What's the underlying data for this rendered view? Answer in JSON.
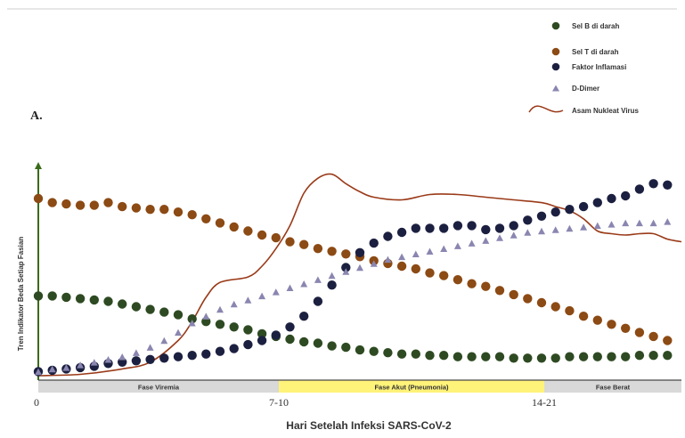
{
  "chart_data": {
    "type": "line",
    "panel_label": "A.",
    "xlabel": "Hari Setelah Infeksi SARS-CoV-2",
    "ylabel": "Tren Indikator Beda Setiap Fasian",
    "x_ticks": [
      "0",
      "7-10",
      "14-21"
    ],
    "phases": [
      {
        "label": "Fase Viremia",
        "color": "#d9d9d9"
      },
      {
        "label": "Fase Akut (Pneumonia)",
        "color": "#fff37a"
      },
      {
        "label": "Fase Berat",
        "color": "#d9d9d9"
      }
    ],
    "legend": [
      {
        "label": "Sel B di darah",
        "marker": "circle",
        "color": "#2e4a22"
      },
      {
        "label": "Sel T di darah",
        "marker": "circle",
        "color": "#8c4a14"
      },
      {
        "label": "Faktor Inflamasi",
        "marker": "circle",
        "color": "#1c2040"
      },
      {
        "label": "D-Dimer",
        "marker": "triangle",
        "color": "#8a86b0"
      },
      {
        "label": "Asam Nukleat Virus",
        "marker": "line",
        "color": "#9a3a18"
      }
    ],
    "series": [
      {
        "name": "Sel B di darah",
        "marker": "circle",
        "color": "#2e4a22",
        "points": [
          [
            0,
            81
          ],
          [
            1,
            81
          ],
          [
            2,
            80
          ],
          [
            3,
            79
          ],
          [
            4,
            78
          ],
          [
            5,
            77
          ],
          [
            6,
            75
          ],
          [
            7,
            73
          ],
          [
            8,
            71
          ],
          [
            9,
            69
          ],
          [
            10,
            67
          ],
          [
            11,
            64
          ],
          [
            12,
            62
          ],
          [
            13,
            60
          ],
          [
            14,
            58
          ],
          [
            15,
            56
          ],
          [
            16,
            53
          ],
          [
            17,
            51
          ],
          [
            18,
            49
          ],
          [
            19,
            47
          ],
          [
            20,
            46
          ],
          [
            21,
            44
          ],
          [
            22,
            43
          ],
          [
            23,
            41
          ],
          [
            24,
            40
          ],
          [
            25,
            39
          ],
          [
            26,
            38
          ],
          [
            27,
            38
          ],
          [
            28,
            37
          ],
          [
            29,
            37
          ],
          [
            30,
            36
          ],
          [
            31,
            36
          ],
          [
            32,
            36
          ],
          [
            33,
            36
          ],
          [
            34,
            35
          ],
          [
            35,
            35
          ],
          [
            36,
            35
          ],
          [
            37,
            35
          ],
          [
            38,
            36
          ],
          [
            39,
            36
          ],
          [
            40,
            36
          ],
          [
            41,
            36
          ],
          [
            42,
            36
          ],
          [
            43,
            37
          ],
          [
            44,
            37
          ],
          [
            45,
            37
          ]
        ]
      },
      {
        "name": "Sel T di darah",
        "marker": "circle",
        "color": "#8c4a14",
        "points": [
          [
            0,
            153
          ],
          [
            1,
            150
          ],
          [
            2,
            149
          ],
          [
            3,
            148
          ],
          [
            4,
            148
          ],
          [
            5,
            150
          ],
          [
            6,
            147
          ],
          [
            7,
            146
          ],
          [
            8,
            145
          ],
          [
            9,
            145
          ],
          [
            10,
            143
          ],
          [
            11,
            141
          ],
          [
            12,
            138
          ],
          [
            13,
            135
          ],
          [
            14,
            132
          ],
          [
            15,
            129
          ],
          [
            16,
            126
          ],
          [
            17,
            124
          ],
          [
            18,
            121
          ],
          [
            19,
            119
          ],
          [
            20,
            116
          ],
          [
            21,
            114
          ],
          [
            22,
            112
          ],
          [
            23,
            110
          ],
          [
            24,
            107
          ],
          [
            25,
            105
          ],
          [
            26,
            103
          ],
          [
            27,
            101
          ],
          [
            28,
            98
          ],
          [
            29,
            96
          ],
          [
            30,
            93
          ],
          [
            31,
            90
          ],
          [
            32,
            88
          ],
          [
            33,
            85
          ],
          [
            34,
            82
          ],
          [
            35,
            79
          ],
          [
            36,
            76
          ],
          [
            37,
            73
          ],
          [
            38,
            70
          ],
          [
            39,
            66
          ],
          [
            40,
            63
          ],
          [
            41,
            60
          ],
          [
            42,
            57
          ],
          [
            43,
            54
          ],
          [
            44,
            51
          ],
          [
            45,
            48
          ]
        ]
      },
      {
        "name": "Faktor Inflamasi",
        "marker": "circle",
        "color": "#1c2040",
        "points": [
          [
            0,
            25
          ],
          [
            1,
            26
          ],
          [
            2,
            27
          ],
          [
            3,
            28
          ],
          [
            4,
            29
          ],
          [
            5,
            31
          ],
          [
            6,
            32
          ],
          [
            7,
            33
          ],
          [
            8,
            34
          ],
          [
            9,
            35
          ],
          [
            10,
            36
          ],
          [
            11,
            37
          ],
          [
            12,
            38
          ],
          [
            13,
            40
          ],
          [
            14,
            42
          ],
          [
            15,
            45
          ],
          [
            16,
            48
          ],
          [
            17,
            52
          ],
          [
            18,
            58
          ],
          [
            19,
            66
          ],
          [
            20,
            77
          ],
          [
            21,
            89
          ],
          [
            22,
            102
          ],
          [
            23,
            113
          ],
          [
            24,
            120
          ],
          [
            25,
            125
          ],
          [
            26,
            128
          ],
          [
            27,
            131
          ],
          [
            28,
            131
          ],
          [
            29,
            131
          ],
          [
            30,
            133
          ],
          [
            31,
            133
          ],
          [
            32,
            130
          ],
          [
            33,
            131
          ],
          [
            34,
            133
          ],
          [
            35,
            137
          ],
          [
            36,
            140
          ],
          [
            37,
            143
          ],
          [
            38,
            145
          ],
          [
            39,
            147
          ],
          [
            40,
            150
          ],
          [
            41,
            153
          ],
          [
            42,
            155
          ],
          [
            43,
            160
          ],
          [
            44,
            164
          ],
          [
            45,
            163
          ]
        ]
      },
      {
        "name": "D-Dimer",
        "marker": "triangle",
        "color": "#8a86b0",
        "points": [
          [
            0,
            25
          ],
          [
            1,
            27
          ],
          [
            2,
            28
          ],
          [
            3,
            30
          ],
          [
            4,
            32
          ],
          [
            5,
            34
          ],
          [
            6,
            36
          ],
          [
            7,
            39
          ],
          [
            8,
            43
          ],
          [
            9,
            48
          ],
          [
            10,
            54
          ],
          [
            11,
            61
          ],
          [
            12,
            66
          ],
          [
            13,
            71
          ],
          [
            14,
            75
          ],
          [
            15,
            78
          ],
          [
            16,
            81
          ],
          [
            17,
            84
          ],
          [
            18,
            87
          ],
          [
            19,
            90
          ],
          [
            20,
            93
          ],
          [
            21,
            96
          ],
          [
            22,
            99
          ],
          [
            23,
            102
          ],
          [
            24,
            105
          ],
          [
            25,
            108
          ],
          [
            26,
            110
          ],
          [
            27,
            112
          ],
          [
            28,
            114
          ],
          [
            29,
            116
          ],
          [
            30,
            118
          ],
          [
            31,
            120
          ],
          [
            32,
            122
          ],
          [
            33,
            124
          ],
          [
            34,
            126
          ],
          [
            35,
            128
          ],
          [
            36,
            129
          ],
          [
            37,
            130
          ],
          [
            38,
            131
          ],
          [
            39,
            132
          ],
          [
            40,
            133
          ],
          [
            41,
            134
          ],
          [
            42,
            135
          ],
          [
            43,
            135
          ],
          [
            44,
            135
          ],
          [
            45,
            136
          ]
        ]
      },
      {
        "name": "Asam Nukleat Virus",
        "marker": "line",
        "color": "#9a3a18",
        "points": [
          [
            0,
            22
          ],
          [
            3,
            23
          ],
          [
            6,
            27
          ],
          [
            8,
            32
          ],
          [
            10,
            48
          ],
          [
            11,
            62
          ],
          [
            12,
            80
          ],
          [
            13,
            91
          ],
          [
            15,
            95
          ],
          [
            16,
            103
          ],
          [
            17,
            116
          ],
          [
            18,
            133
          ],
          [
            19,
            157
          ],
          [
            20,
            168
          ],
          [
            21,
            171
          ],
          [
            22,
            164
          ],
          [
            23,
            158
          ],
          [
            24,
            154
          ],
          [
            26,
            152
          ],
          [
            28,
            156
          ],
          [
            30,
            156
          ],
          [
            32,
            154
          ],
          [
            34,
            152
          ],
          [
            36,
            150
          ],
          [
            37,
            147
          ],
          [
            38,
            144
          ],
          [
            39,
            138
          ],
          [
            40,
            129
          ],
          [
            41,
            127
          ],
          [
            42,
            126
          ],
          [
            43,
            127
          ],
          [
            44,
            127
          ],
          [
            45,
            123
          ],
          [
            46,
            121
          ]
        ]
      }
    ],
    "xlim": [
      0,
      46
    ],
    "ylim": [
      22,
      180
    ]
  }
}
